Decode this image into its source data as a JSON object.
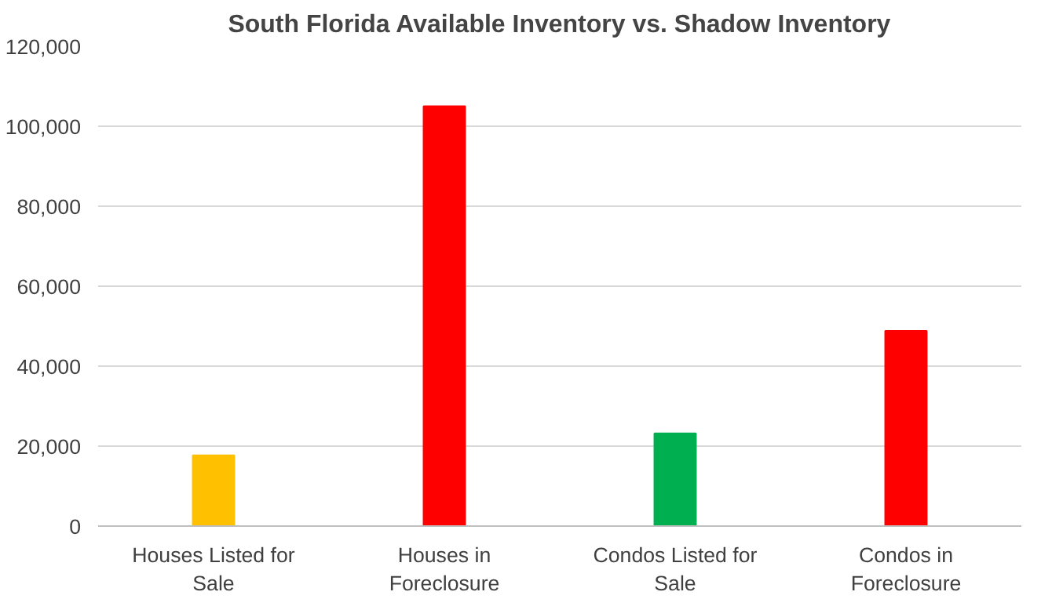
{
  "chart_data": {
    "type": "bar",
    "title": "South Florida Available Inventory vs. Shadow Inventory",
    "categories": [
      "Houses Listed for Sale",
      "Houses in Foreclosure",
      "Condos Listed for Sale",
      "Condos in Foreclosure"
    ],
    "values": [
      17700,
      105000,
      23200,
      48800
    ],
    "colors": [
      "#ffc000",
      "#ff0000",
      "#00b050",
      "#ff0000"
    ],
    "ylim": [
      0,
      120000
    ],
    "yticks": [
      {
        "value": 0,
        "label": "0"
      },
      {
        "value": 20000,
        "label": "20,000"
      },
      {
        "value": 40000,
        "label": "40,000"
      },
      {
        "value": 60000,
        "label": "60,000"
      },
      {
        "value": 80000,
        "label": "80,000"
      },
      {
        "value": 100000,
        "label": "100,000"
      },
      {
        "value": 120000,
        "label": "120,000"
      }
    ],
    "grid": "y"
  }
}
